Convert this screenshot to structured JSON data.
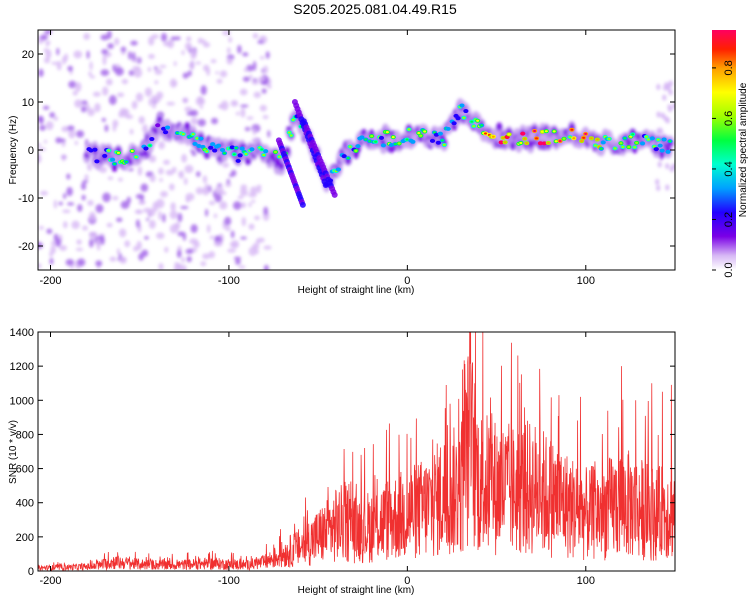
{
  "title": "S205.2025.081.04.49.R15",
  "chart_data": [
    {
      "type": "heatmap",
      "xlabel": "Height of straight line (km)",
      "ylabel": "Frequency (Hz)",
      "xlim": [
        -207,
        150
      ],
      "ylim": [
        -25,
        25
      ],
      "xticks": [
        -200,
        -100,
        0,
        100
      ],
      "yticks": [
        -20,
        -10,
        0,
        10,
        20
      ],
      "grid": false,
      "colorbar": {
        "label": "Normalized spectral amplitude",
        "range": [
          0.0,
          0.95
        ],
        "ticks": [
          0.0,
          0.2,
          0.4,
          0.6,
          0.8
        ],
        "colormap": [
          "#ffffff",
          "#d7b8f5",
          "#7a00e6",
          "#2200ff",
          "#00a0ff",
          "#00ffd0",
          "#00ff40",
          "#a0ff00",
          "#ffff00",
          "#ffa000",
          "#ff2000",
          "#ff0060"
        ]
      },
      "ridge": [
        {
          "x": -180,
          "y": -1.0,
          "a": 0.25
        },
        {
          "x": -165,
          "y": -1.5,
          "a": 0.45
        },
        {
          "x": -150,
          "y": -1.0,
          "a": 0.5
        },
        {
          "x": -140,
          "y": 5.0,
          "a": 0.3
        },
        {
          "x": -125,
          "y": 4.0,
          "a": 0.4
        },
        {
          "x": -110,
          "y": 0.0,
          "a": 0.45
        },
        {
          "x": -95,
          "y": -1.0,
          "a": 0.4
        },
        {
          "x": -80,
          "y": 0.0,
          "a": 0.45
        },
        {
          "x": -70,
          "y": -3.0,
          "a": 0.45
        },
        {
          "x": -62,
          "y": 8.0,
          "a": 0.35
        },
        {
          "x": -55,
          "y": 2.0,
          "a": 0.4
        },
        {
          "x": -45,
          "y": -6.0,
          "a": 0.4
        },
        {
          "x": -35,
          "y": -1.0,
          "a": 0.4
        },
        {
          "x": -25,
          "y": 2.0,
          "a": 0.45
        },
        {
          "x": -10,
          "y": 2.5,
          "a": 0.5
        },
        {
          "x": 5,
          "y": 3.0,
          "a": 0.45
        },
        {
          "x": 20,
          "y": 2.0,
          "a": 0.45
        },
        {
          "x": 30,
          "y": 8.0,
          "a": 0.4
        },
        {
          "x": 40,
          "y": 4.5,
          "a": 0.55
        },
        {
          "x": 55,
          "y": 2.5,
          "a": 0.9
        },
        {
          "x": 70,
          "y": 2.5,
          "a": 0.85
        },
        {
          "x": 85,
          "y": 3.0,
          "a": 0.85
        },
        {
          "x": 95,
          "y": 3.0,
          "a": 0.75
        },
        {
          "x": 110,
          "y": 1.5,
          "a": 0.5
        },
        {
          "x": 125,
          "y": 2.0,
          "a": 0.45
        },
        {
          "x": 140,
          "y": 1.5,
          "a": 0.4
        },
        {
          "x": 148,
          "y": 0.5,
          "a": 0.35
        }
      ]
    },
    {
      "type": "line",
      "xlabel": "Height of straight line (km)",
      "ylabel": "SNR (10 * v/v)",
      "xlim": [
        -207,
        150
      ],
      "ylim": [
        0,
        1400
      ],
      "xticks": [
        -200,
        -100,
        0,
        100
      ],
      "yticks": [
        0,
        200,
        400,
        600,
        800,
        1000,
        1200,
        1400
      ],
      "grid": false,
      "color": "#f03030",
      "x": [
        -207,
        -190,
        -175,
        -165,
        -150,
        -130,
        -110,
        -90,
        -80,
        -70,
        -60,
        -50,
        -40,
        -35,
        -30,
        -20,
        -10,
        0,
        10,
        20,
        30,
        35,
        40,
        50,
        60,
        70,
        80,
        90,
        100,
        110,
        120,
        130,
        140,
        150
      ],
      "y": [
        20,
        25,
        30,
        60,
        45,
        40,
        50,
        40,
        60,
        110,
        160,
        230,
        300,
        330,
        280,
        300,
        350,
        380,
        420,
        500,
        550,
        900,
        600,
        560,
        540,
        560,
        500,
        440,
        380,
        400,
        460,
        420,
        380,
        420
      ],
      "peaks": [
        {
          "x": 35,
          "y": 1400
        },
        {
          "x": 31,
          "y": 1180
        },
        {
          "x": 24,
          "y": 980
        },
        {
          "x": 2,
          "y": 780
        },
        {
          "x": 85,
          "y": 1030
        },
        {
          "x": 97,
          "y": 1020
        },
        {
          "x": 120,
          "y": 1200
        },
        {
          "x": 128,
          "y": 1000
        },
        {
          "x": 137,
          "y": 1100
        },
        {
          "x": 143,
          "y": 1050
        },
        {
          "x": 148,
          "y": 1090
        },
        {
          "x": -40,
          "y": 470
        }
      ]
    }
  ]
}
